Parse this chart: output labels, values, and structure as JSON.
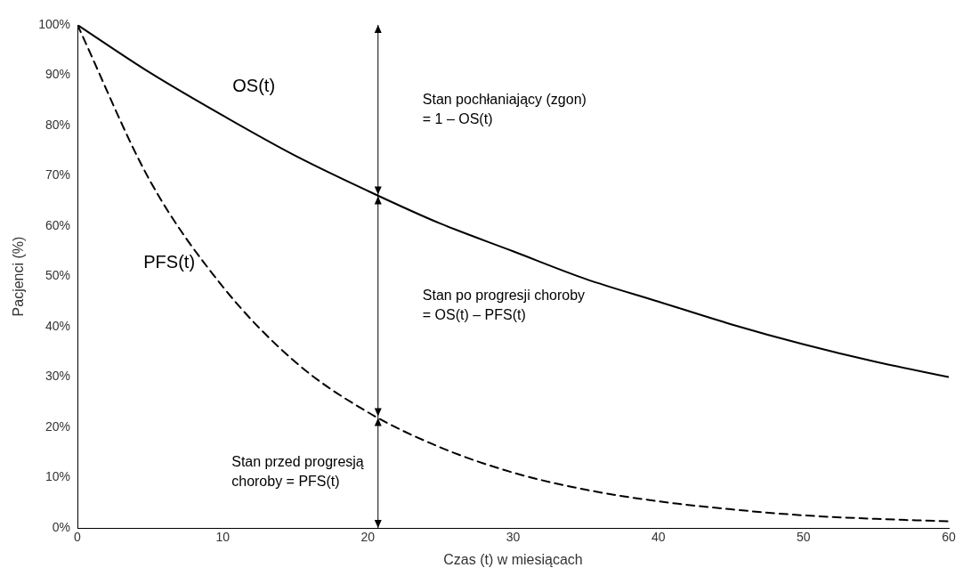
{
  "chart_data": {
    "type": "line",
    "xlabel": "Czas (t) w miesiącach",
    "ylabel": "Pacjenci (%)",
    "x": [
      0,
      5,
      10,
      15,
      20,
      25,
      30,
      35,
      40,
      45,
      50,
      55,
      60
    ],
    "series": [
      {
        "name": "OS(t)",
        "color": "#000000",
        "line_style": "solid",
        "values": [
          100,
          90.5,
          82,
          74,
          67,
          60.5,
          55,
          49.5,
          45,
          40.5,
          36.5,
          33,
          30
        ]
      },
      {
        "name": "PFS(t)",
        "color": "#000000",
        "line_style": "dashed",
        "values": [
          100,
          69,
          48,
          33,
          23,
          16,
          11,
          7.6,
          5.3,
          3.7,
          2.5,
          1.8,
          1.3
        ]
      }
    ],
    "xlim": [
      0,
      60
    ],
    "xticks": [
      0,
      10,
      20,
      30,
      40,
      50,
      60
    ],
    "ylim": [
      0,
      100
    ],
    "yticks": [
      {
        "value": 0,
        "label": "0%"
      },
      {
        "value": 10,
        "label": "10%"
      },
      {
        "value": 20,
        "label": "20%"
      },
      {
        "value": 30,
        "label": "30%"
      },
      {
        "value": 40,
        "label": "40%"
      },
      {
        "value": 50,
        "label": "50%"
      },
      {
        "value": 60,
        "label": "60%"
      },
      {
        "value": 70,
        "label": "70%"
      },
      {
        "value": 80,
        "label": "80%"
      },
      {
        "value": 90,
        "label": "90%"
      },
      {
        "value": 100,
        "label": "100%"
      }
    ],
    "ref_lines": [
      {
        "axis": "x",
        "value": 20.7,
        "color": "#000000",
        "line_style": "solid"
      }
    ],
    "annotations": [
      "Stan pochłaniający (zgon)\n= 1 – OS(t)",
      "Stan po progresji choroby\n= OS(t) – PFS(t)",
      "Stan przed progresją\nchoroby = PFS(t)"
    ],
    "grid": false,
    "legend": false,
    "marker": "none"
  }
}
